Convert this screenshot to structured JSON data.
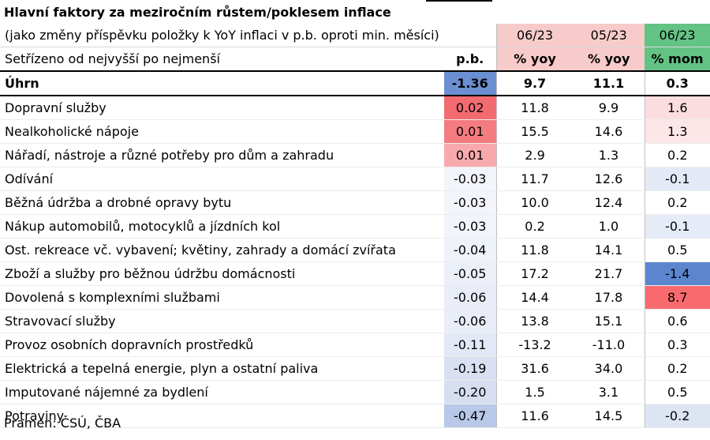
{
  "title": "Hlavní faktory za meziročním růstem/poklesem inflace",
  "header": {
    "row1_label": "(jako změny příspěvku položky k YoY inflaci v p.b. oproti min. měsíci)",
    "row2_label": "Setřízeno od nejvyšší po nejmenší",
    "col1_top": "",
    "col1_bottom": "p.b.",
    "col2_top": "06/23",
    "col2_bottom": "% yoy",
    "col3_top": "05/23",
    "col3_bottom": "% yoy",
    "col4_top": "06/23",
    "col4_bottom": "% mom",
    "col2_color": "#f8cbcb",
    "col3_color": "#f8cbcb",
    "col4_color": "#63c384"
  },
  "total": {
    "label": "Úhrn",
    "pb": "-1.36",
    "yoy_0623": "9.7",
    "yoy_0523": "11.1",
    "mom_0623": "0.3",
    "pb_color": "#6b8fd0"
  },
  "rows": [
    {
      "label": "Dopravní služby",
      "pb": "0.02",
      "yoy_0623": "11.8",
      "yoy_0523": "9.9",
      "mom_0623": "1.6",
      "pb_color": "#f26b70",
      "mom_color": "#fbdde0"
    },
    {
      "label": "Nealkoholické nápoje",
      "pb": "0.01",
      "yoy_0623": "15.5",
      "yoy_0523": "14.6",
      "mom_0623": "1.3",
      "pb_color": "#f47b80",
      "mom_color": "#fce6e8"
    },
    {
      "label": "Nářadí, nástroje a různé potřeby pro dům a zahradu",
      "pb": "0.01",
      "yoy_0623": "2.9",
      "yoy_0523": "1.3",
      "mom_0623": "0.2",
      "pb_color": "#f8a9ac",
      "mom_color": "#ffffff"
    },
    {
      "label": "Odívání",
      "pb": "-0.03",
      "yoy_0623": "11.7",
      "yoy_0523": "12.6",
      "mom_0623": "-0.1",
      "pb_color": "#f3f5fb",
      "mom_color": "#e3eaf6"
    },
    {
      "label": "Běžná údržba a drobné opravy bytu",
      "pb": "-0.03",
      "yoy_0623": "10.0",
      "yoy_0523": "12.4",
      "mom_0623": "0.2",
      "pb_color": "#f3f5fb",
      "mom_color": "#ffffff"
    },
    {
      "label": "Nákup automobilů, motocyklů a jízdních kol",
      "pb": "-0.03",
      "yoy_0623": "0.2",
      "yoy_0523": "1.0",
      "mom_0623": "-0.1",
      "pb_color": "#f1f4fa",
      "mom_color": "#e6ecf7"
    },
    {
      "label": "Ost. rekreace vč. vybavení; květiny, zahrady a domácí zvířata",
      "pb": "-0.04",
      "yoy_0623": "11.8",
      "yoy_0523": "14.1",
      "mom_0623": "0.5",
      "pb_color": "#eef2f9",
      "mom_color": "#ffffff"
    },
    {
      "label": "Zboží a služby pro běžnou údržbu domácnosti",
      "pb": "-0.05",
      "yoy_0623": "17.2",
      "yoy_0523": "21.7",
      "mom_0623": "-1.4",
      "pb_color": "#ebeff8",
      "mom_color": "#5b86cf"
    },
    {
      "label": "Dovolená s komplexními službami",
      "pb": "-0.06",
      "yoy_0623": "14.4",
      "yoy_0523": "17.8",
      "mom_0623": "8.7",
      "pb_color": "#e9edf7",
      "mom_color": "#f86a6e"
    },
    {
      "label": "Stravovací služby",
      "pb": "-0.06",
      "yoy_0623": "13.8",
      "yoy_0523": "15.1",
      "mom_0623": "0.6",
      "pb_color": "#e9edf7",
      "mom_color": "#ffffff"
    },
    {
      "label": "Provoz osobních dopravních prostředků",
      "pb": "-0.11",
      "yoy_0623": "-13.2",
      "yoy_0523": "-11.0",
      "mom_0623": "0.3",
      "pb_color": "#e2e8f5",
      "mom_color": "#ffffff"
    },
    {
      "label": "Elektrická a tepelná energie, plyn a ostatní paliva",
      "pb": "-0.19",
      "yoy_0623": "31.6",
      "yoy_0523": "34.0",
      "mom_0623": "0.2",
      "pb_color": "#d8e0f1",
      "mom_color": "#ffffff"
    },
    {
      "label": "Imputované nájemné za bydlení",
      "pb": "-0.20",
      "yoy_0623": "1.5",
      "yoy_0523": "3.1",
      "mom_0623": "0.5",
      "pb_color": "#d6def0",
      "mom_color": "#ffffff"
    },
    {
      "label": "Potraviny",
      "pb": "-0.47",
      "yoy_0623": "11.6",
      "yoy_0523": "14.5",
      "mom_0623": "-0.2",
      "pb_color": "#b8c8e8",
      "mom_color": "#dde5f3"
    }
  ],
  "source": "Pramen: ČSÚ, ČBA"
}
